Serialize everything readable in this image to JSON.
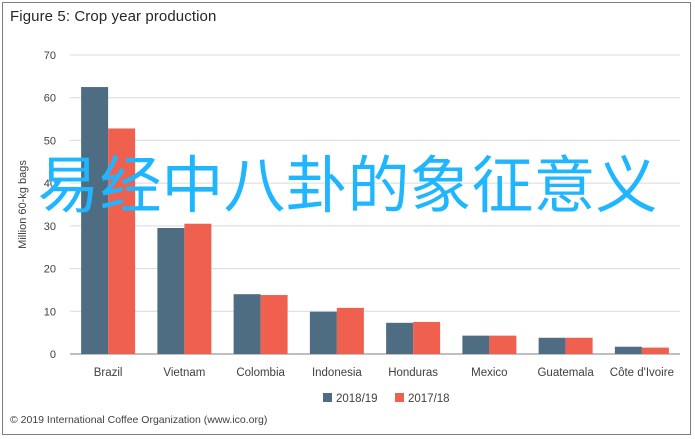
{
  "figure_title": "Figure 5: Crop year production",
  "footer": "© 2019 International Coffee Organization (www.ico.org)",
  "overlay_text": "易经中八卦的象征意义",
  "colors": {
    "series1": "#4f6d82",
    "series2": "#f0604f",
    "grid": "#d9d9d9",
    "axis": "#7f7f7f"
  },
  "chart_data": {
    "type": "bar",
    "title": "Figure 5: Crop year production",
    "ylabel": "Million 60-kg bags",
    "xlabel": "",
    "ylim": [
      0,
      70
    ],
    "yticks": [
      0,
      10,
      20,
      30,
      40,
      50,
      60,
      70
    ],
    "grid": true,
    "legend_position": "bottom",
    "categories": [
      "Brazil",
      "Vietnam",
      "Colombia",
      "Indonesia",
      "Honduras",
      "Mexico",
      "Guatemala",
      "Côte d'Ivoire"
    ],
    "series": [
      {
        "name": "2018/19",
        "color": "#4f6d82",
        "values": [
          62.5,
          29.5,
          14.0,
          9.9,
          7.3,
          4.3,
          3.8,
          1.7
        ]
      },
      {
        "name": "2017/18",
        "color": "#f0604f",
        "values": [
          52.8,
          30.5,
          13.8,
          10.8,
          7.5,
          4.3,
          3.8,
          1.5
        ]
      }
    ]
  }
}
